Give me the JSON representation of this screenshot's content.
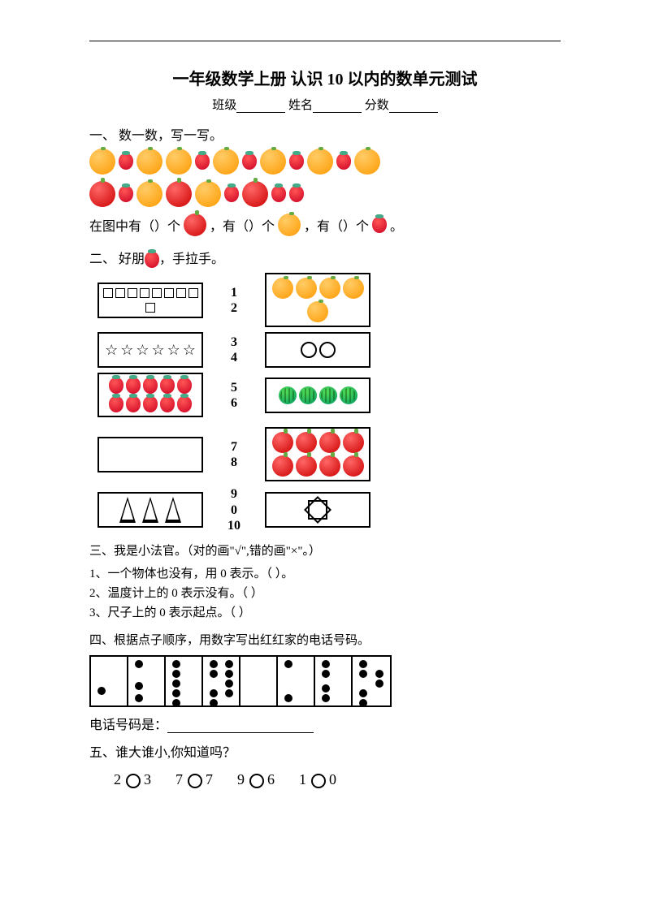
{
  "title": "一年级数学上册 认识 10 以内的数单元测试",
  "info": {
    "class_label": "班级",
    "name_label": "姓名",
    "score_label": "分数"
  },
  "q1": {
    "heading": "一、 数一数，写一写。",
    "row1": [
      "orange",
      "strawberry",
      "orange",
      "orange",
      "strawberry",
      "orange",
      "strawberry",
      "orange",
      "strawberry",
      "orange",
      "strawberry",
      "orange"
    ],
    "row2": [
      "apple",
      "strawberry",
      "orange",
      "apple",
      "orange",
      "strawberry",
      "apple",
      "strawberry",
      "strawberry"
    ],
    "sentence_parts": [
      "在图中有（）个",
      "，有（）个",
      "，有（）个",
      "。"
    ],
    "icons": [
      "apple",
      "orange",
      "strawberry"
    ]
  },
  "q2": {
    "heading": "二、 好朋  ，手拉手。",
    "left_boxes": [
      {
        "type": "squares",
        "count": 9
      },
      {
        "type": "stars",
        "count": 6
      },
      {
        "type": "strawberries",
        "count": 10
      },
      {
        "type": "empty",
        "count": 0
      },
      {
        "type": "triangles",
        "count": 3
      }
    ],
    "numbers_top": [
      "1",
      "2",
      "3",
      "4",
      "5",
      "6"
    ],
    "numbers_bot": [
      "7",
      "8",
      "9",
      "0",
      "10"
    ],
    "right_boxes": [
      {
        "type": "oranges",
        "count": 5
      },
      {
        "type": "circles",
        "count": 2
      },
      {
        "type": "watermelons",
        "count": 4
      },
      {
        "type": "apples",
        "count": 8
      },
      {
        "type": "octagram",
        "count": 1
      }
    ],
    "colors": {
      "orange": "#ff9900",
      "apple": "#cc0000",
      "strawberry": "#cc0022",
      "watermelon": "#096600"
    }
  },
  "q3": {
    "heading": "三、我是小法官。（对的画\"√\",错的画\"×\"。）",
    "items": [
      "1、一个物体也没有，用 0 表示。（ ）。",
      "2、温度计上的 0 表示没有。（ ）",
      "3、尺子上的 0 表示起点。（ ）"
    ]
  },
  "q4": {
    "heading": "四、根据点子顺序，用数字写出红红家的电话号码。",
    "dominoes": [
      1,
      3,
      5,
      8,
      0,
      2,
      4,
      6
    ],
    "answer_label": "电话号码是："
  },
  "q5": {
    "heading": "五、谁大谁小,你知道吗？",
    "pairs": [
      [
        "2",
        "3"
      ],
      [
        "7",
        "7"
      ],
      [
        "9",
        "6"
      ],
      [
        "1",
        "0"
      ]
    ]
  }
}
